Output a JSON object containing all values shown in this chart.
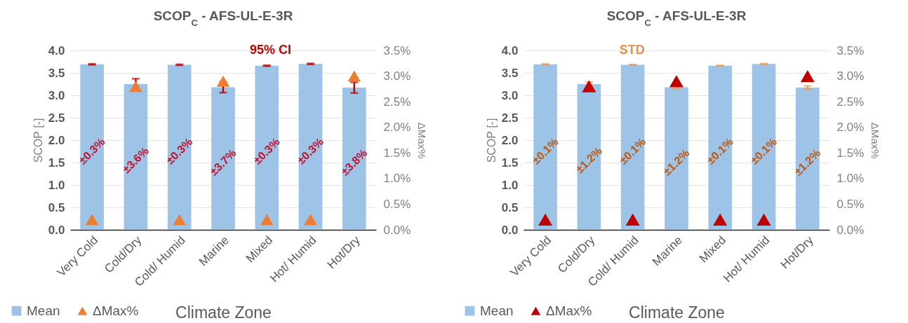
{
  "chart_data": [
    {
      "type": "bar",
      "title": "SCOP$_{C}$ - AFS-UL-E-3R",
      "xlabel": "Climate Zone",
      "ylabel": "SCOP [-]",
      "y2label": "ΔMax%",
      "categories": [
        "Very Cold",
        "Cold/Dry",
        "Cold/ Humid",
        "Marine",
        "Mixed",
        "Hot/ Humid",
        "Hot/Dry"
      ],
      "series": [
        {
          "name": "Mean",
          "type": "bar",
          "color": "#9dc3e6",
          "values": [
            3.69,
            3.25,
            3.68,
            3.18,
            3.66,
            3.7,
            3.17
          ],
          "errors": [
            0.01,
            0.12,
            0.01,
            0.12,
            0.01,
            0.01,
            0.12
          ]
        },
        {
          "name": "ΔMax%",
          "type": "scatter",
          "axis": "y2",
          "color": "#ed7d31",
          "values": [
            0.2,
            2.8,
            0.2,
            2.9,
            0.2,
            0.2,
            3.0
          ]
        }
      ],
      "ylim": [
        0,
        4
      ],
      "yticks": [
        {
          "value": 0,
          "label": "0.0"
        },
        {
          "value": 0.5,
          "label": "0.5"
        },
        {
          "value": 1,
          "label": "1.0"
        },
        {
          "value": 1.5,
          "label": "1.5"
        },
        {
          "value": 2,
          "label": "2.0"
        },
        {
          "value": 2.5,
          "label": "2.5"
        },
        {
          "value": 3,
          "label": "3.0"
        },
        {
          "value": 3.5,
          "label": "3.5"
        },
        {
          "value": 4,
          "label": "4.0"
        }
      ],
      "y2lim": [
        0,
        3.5
      ],
      "y2ticks": [
        {
          "value": 0,
          "label": "0.0%"
        },
        {
          "value": 0.5,
          "label": "0.5%"
        },
        {
          "value": 1,
          "label": "1.0%"
        },
        {
          "value": 1.5,
          "label": "1.5%"
        },
        {
          "value": 2,
          "label": "2.0%"
        },
        {
          "value": 2.5,
          "label": "2.5%"
        },
        {
          "value": 3,
          "label": "3.0%"
        },
        {
          "value": 3.5,
          "label": "3.5%"
        }
      ],
      "grid": "y",
      "legend": "bottom left",
      "marker": "triangle",
      "annotations": [
        "95% CI",
        {
          "text": "±0.3%",
          "x": "Very Cold",
          "y": 1.75
        },
        {
          "text": "±3.6%",
          "x": "Cold/Dry",
          "y": 1.55
        },
        {
          "text": "±0.3%",
          "x": "Cold/ Humid",
          "y": 1.75
        },
        {
          "text": "±3.7%",
          "x": "Marine",
          "y": 1.5
        },
        {
          "text": "±0.3%",
          "x": "Mixed",
          "y": 1.75
        },
        {
          "text": "±0.3%",
          "x": "Hot/ Humid",
          "y": 1.75
        },
        {
          "text": "±3.8%",
          "x": "Hot/Dry",
          "y": 1.5
        }
      ]
    },
    {
      "type": "bar",
      "title": "SCOP$_{C}$ - AFS-UL-E-3R",
      "xlabel": "Climate Zone",
      "ylabel": "SCOP [-]",
      "y2label": "ΔMax%",
      "categories": [
        "Very Cold",
        "Cold/Dry",
        "Cold/ Humid",
        "Marine",
        "Mixed",
        "Hot/ Humid",
        "Hot/Dry"
      ],
      "series": [
        {
          "name": "Mean",
          "type": "bar",
          "color": "#9dc3e6",
          "values": [
            3.69,
            3.25,
            3.68,
            3.18,
            3.66,
            3.7,
            3.17
          ],
          "errors": [
            0.004,
            0.04,
            0.004,
            0.04,
            0.004,
            0.004,
            0.04
          ]
        },
        {
          "name": "ΔMax%",
          "type": "scatter",
          "axis": "y2",
          "color": "#c00000",
          "values": [
            0.2,
            2.8,
            0.2,
            2.9,
            0.2,
            0.2,
            3.0
          ]
        }
      ],
      "ylim": [
        0,
        4
      ],
      "yticks": [
        {
          "value": 0,
          "label": "0.0"
        },
        {
          "value": 0.5,
          "label": "0.5"
        },
        {
          "value": 1,
          "label": "1.0"
        },
        {
          "value": 1.5,
          "label": "1.5"
        },
        {
          "value": 2,
          "label": "2.0"
        },
        {
          "value": 2.5,
          "label": "2.5"
        },
        {
          "value": 3,
          "label": "3.0"
        },
        {
          "value": 3.5,
          "label": "3.5"
        },
        {
          "value": 4,
          "label": "4.0"
        }
      ],
      "y2lim": [
        0,
        3.5
      ],
      "y2ticks": [
        {
          "value": 0,
          "label": "0.0%"
        },
        {
          "value": 0.5,
          "label": "0.5%"
        },
        {
          "value": 1,
          "label": "1.0%"
        },
        {
          "value": 1.5,
          "label": "1.5%"
        },
        {
          "value": 2,
          "label": "2.0%"
        },
        {
          "value": 2.5,
          "label": "2.5%"
        },
        {
          "value": 3,
          "label": "3.0%"
        },
        {
          "value": 3.5,
          "label": "3.5%"
        }
      ],
      "grid": "y",
      "legend": "bottom left",
      "marker": "triangle",
      "annotations": [
        "STD",
        {
          "text": "±0.1%",
          "x": "Very Cold",
          "y": 1.75
        },
        {
          "text": "±1.2%",
          "x": "Cold/Dry",
          "y": 1.55
        },
        {
          "text": "±0.1%",
          "x": "Cold/ Humid",
          "y": 1.75
        },
        {
          "text": "±1.2%",
          "x": "Marine",
          "y": 1.5
        },
        {
          "text": "±0.1%",
          "x": "Mixed",
          "y": 1.75
        },
        {
          "text": "±0.1%",
          "x": "Hot/ Humid",
          "y": 1.75
        },
        {
          "text": "±1.2%",
          "x": "Hot/Dry",
          "y": 1.5
        }
      ]
    }
  ]
}
